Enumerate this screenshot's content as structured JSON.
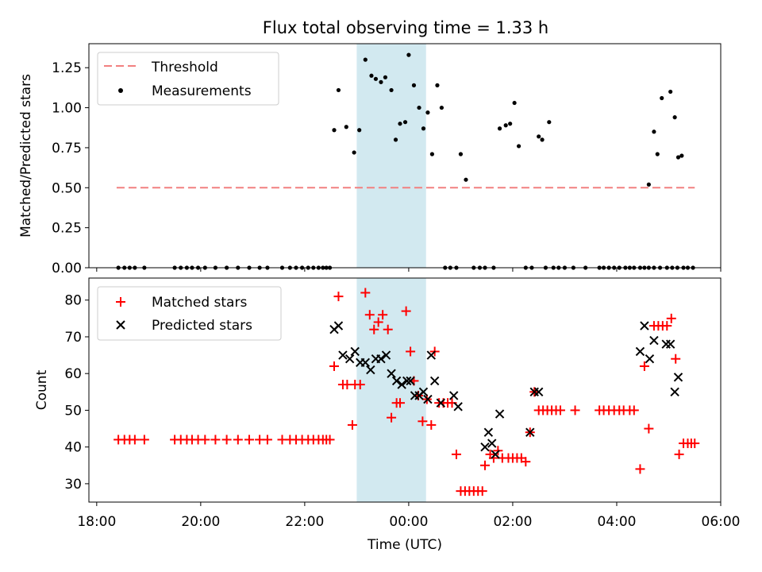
{
  "chart_data": [
    {
      "type": "scatter",
      "title": "Flux total observing time = 1.33 h",
      "xlabel": "",
      "ylabel": "Matched/Predicted stars",
      "xlim": [
        "18:00",
        "06:00"
      ],
      "x_hours_range": [
        -0.15,
        12.0
      ],
      "ylim": [
        0,
        1.4
      ],
      "yticks": [
        0.0,
        0.25,
        0.5,
        0.75,
        1.0,
        1.25
      ],
      "ytick_labels": [
        "0.00",
        "0.25",
        "0.50",
        "0.75",
        "1.00",
        "1.25"
      ],
      "legend_placement": "top-left",
      "highlight_span": {
        "start": "23:00",
        "end": "00:20",
        "color": "#d2e9f0"
      },
      "threshold": {
        "name": "Threshold",
        "value": 0.5,
        "x_start": "18:23",
        "x_end": "05:30",
        "color": "#f28080",
        "style": "dashed"
      },
      "series": [
        {
          "name": "Measurements",
          "color": "#000000",
          "marker": "dot",
          "points": [
            [
              "18:25",
              0
            ],
            [
              "18:32",
              0
            ],
            [
              "18:38",
              0
            ],
            [
              "18:44",
              0
            ],
            [
              "18:55",
              0
            ],
            [
              "19:30",
              0
            ],
            [
              "19:37",
              0
            ],
            [
              "19:44",
              0
            ],
            [
              "19:50",
              0
            ],
            [
              "19:57",
              0
            ],
            [
              "20:05",
              0
            ],
            [
              "20:17",
              0
            ],
            [
              "20:30",
              0
            ],
            [
              "20:43",
              0
            ],
            [
              "20:56",
              0
            ],
            [
              "21:08",
              0
            ],
            [
              "21:17",
              0
            ],
            [
              "21:34",
              0
            ],
            [
              "21:43",
              0
            ],
            [
              "21:50",
              0
            ],
            [
              "21:57",
              0
            ],
            [
              "22:04",
              0
            ],
            [
              "22:10",
              0
            ],
            [
              "22:16",
              0
            ],
            [
              "22:21",
              0
            ],
            [
              "22:25",
              0
            ],
            [
              "22:29",
              0
            ],
            [
              "22:34",
              0.86
            ],
            [
              "22:39",
              1.11
            ],
            [
              "22:48",
              0.88
            ],
            [
              "22:57",
              0.72
            ],
            [
              "23:03",
              0.86
            ],
            [
              "23:10",
              1.3
            ],
            [
              "23:17",
              1.2
            ],
            [
              "23:22",
              1.18
            ],
            [
              "23:28",
              1.16
            ],
            [
              "23:33",
              1.19
            ],
            [
              "23:40",
              1.11
            ],
            [
              "23:45",
              0.8
            ],
            [
              "23:50",
              0.9
            ],
            [
              "23:56",
              0.91
            ],
            [
              "00:00",
              1.33
            ],
            [
              "00:06",
              1.14
            ],
            [
              "00:12",
              1.0
            ],
            [
              "00:17",
              0.87
            ],
            [
              "00:22",
              0.97
            ],
            [
              "00:27",
              0.71
            ],
            [
              "00:33",
              1.14
            ],
            [
              "00:38",
              1.0
            ],
            [
              "00:42",
              0
            ],
            [
              "00:48",
              0
            ],
            [
              "00:55",
              0
            ],
            [
              "01:00",
              0.71
            ],
            [
              "01:06",
              0.55
            ],
            [
              "01:15",
              0
            ],
            [
              "01:22",
              0
            ],
            [
              "01:28",
              0
            ],
            [
              "01:38",
              0
            ],
            [
              "01:45",
              0.87
            ],
            [
              "01:52",
              0.89
            ],
            [
              "01:57",
              0.9
            ],
            [
              "02:02",
              1.03
            ],
            [
              "02:07",
              0.76
            ],
            [
              "02:15",
              0
            ],
            [
              "02:22",
              0
            ],
            [
              "02:30",
              0.82
            ],
            [
              "02:34",
              0.8
            ],
            [
              "02:38",
              0
            ],
            [
              "02:42",
              0.91
            ],
            [
              "02:47",
              0
            ],
            [
              "02:53",
              0
            ],
            [
              "03:00",
              0
            ],
            [
              "03:10",
              0
            ],
            [
              "03:24",
              0
            ],
            [
              "03:40",
              0
            ],
            [
              "03:45",
              0
            ],
            [
              "03:51",
              0
            ],
            [
              "03:57",
              0
            ],
            [
              "04:03",
              0
            ],
            [
              "04:10",
              0
            ],
            [
              "04:15",
              0
            ],
            [
              "04:20",
              0
            ],
            [
              "04:27",
              0
            ],
            [
              "04:32",
              0
            ],
            [
              "04:37",
              0
            ],
            [
              "04:43",
              0
            ],
            [
              "04:50",
              0
            ],
            [
              "04:58",
              0
            ],
            [
              "05:04",
              0
            ],
            [
              "05:10",
              0
            ],
            [
              "05:17",
              0
            ],
            [
              "05:22",
              0
            ],
            [
              "05:28",
              0
            ],
            [
              "04:37",
              0.52
            ],
            [
              "04:43",
              0.85
            ],
            [
              "04:47",
              0.71
            ],
            [
              "04:52",
              1.06
            ],
            [
              "05:02",
              1.1
            ],
            [
              "05:07",
              0.94
            ],
            [
              "05:11",
              0.69
            ],
            [
              "05:15",
              0.7
            ]
          ]
        }
      ]
    },
    {
      "type": "scatter",
      "title": "",
      "xlabel": "Time (UTC)",
      "ylabel": "Count",
      "xlim": [
        "18:00",
        "06:00"
      ],
      "x_hours_range": [
        -0.15,
        12.0
      ],
      "xticks": [
        "18:00",
        "20:00",
        "22:00",
        "00:00",
        "02:00",
        "04:00",
        "06:00"
      ],
      "ylim": [
        25,
        86
      ],
      "yticks": [
        30,
        40,
        50,
        60,
        70,
        80
      ],
      "legend_placement": "top-left",
      "highlight_span": {
        "start": "23:00",
        "end": "00:20",
        "color": "#d2e9f0"
      },
      "series": [
        {
          "name": "Matched stars",
          "color": "#ff0000",
          "marker": "plus",
          "points": [
            [
              "18:25",
              42
            ],
            [
              "18:32",
              42
            ],
            [
              "18:38",
              42
            ],
            [
              "18:44",
              42
            ],
            [
              "18:55",
              42
            ],
            [
              "19:30",
              42
            ],
            [
              "19:37",
              42
            ],
            [
              "19:44",
              42
            ],
            [
              "19:50",
              42
            ],
            [
              "19:57",
              42
            ],
            [
              "20:05",
              42
            ],
            [
              "20:17",
              42
            ],
            [
              "20:30",
              42
            ],
            [
              "20:43",
              42
            ],
            [
              "20:56",
              42
            ],
            [
              "21:08",
              42
            ],
            [
              "21:17",
              42
            ],
            [
              "21:34",
              42
            ],
            [
              "21:43",
              42
            ],
            [
              "21:50",
              42
            ],
            [
              "21:57",
              42
            ],
            [
              "22:04",
              42
            ],
            [
              "22:10",
              42
            ],
            [
              "22:16",
              42
            ],
            [
              "22:21",
              42
            ],
            [
              "22:25",
              42
            ],
            [
              "22:29",
              42
            ],
            [
              "22:34",
              62
            ],
            [
              "22:39",
              81
            ],
            [
              "22:44",
              57
            ],
            [
              "22:49",
              57
            ],
            [
              "22:55",
              46
            ],
            [
              "22:58",
              57
            ],
            [
              "23:04",
              57
            ],
            [
              "23:10",
              82
            ],
            [
              "23:15",
              76
            ],
            [
              "23:20",
              72
            ],
            [
              "23:25",
              74
            ],
            [
              "23:30",
              76
            ],
            [
              "23:36",
              72
            ],
            [
              "23:40",
              48
            ],
            [
              "23:46",
              52
            ],
            [
              "23:50",
              52
            ],
            [
              "23:57",
              77
            ],
            [
              "00:02",
              66
            ],
            [
              "00:06",
              58
            ],
            [
              "00:11",
              54
            ],
            [
              "00:16",
              47
            ],
            [
              "00:21",
              53
            ],
            [
              "00:26",
              46
            ],
            [
              "00:30",
              66
            ],
            [
              "00:35",
              52
            ],
            [
              "00:40",
              52
            ],
            [
              "00:45",
              52
            ],
            [
              "00:50",
              52
            ],
            [
              "00:55",
              38
            ],
            [
              "01:00",
              28
            ],
            [
              "01:05",
              28
            ],
            [
              "01:10",
              28
            ],
            [
              "01:15",
              28
            ],
            [
              "01:20",
              28
            ],
            [
              "01:25",
              28
            ],
            [
              "01:28",
              35
            ],
            [
              "01:34",
              38
            ],
            [
              "01:38",
              37
            ],
            [
              "01:43",
              39
            ],
            [
              "01:48",
              37
            ],
            [
              "01:55",
              37
            ],
            [
              "02:00",
              37
            ],
            [
              "02:05",
              37
            ],
            [
              "02:10",
              37
            ],
            [
              "02:15",
              36
            ],
            [
              "02:20",
              44
            ],
            [
              "02:25",
              55
            ],
            [
              "02:30",
              50
            ],
            [
              "02:35",
              50
            ],
            [
              "02:40",
              50
            ],
            [
              "02:45",
              50
            ],
            [
              "02:50",
              50
            ],
            [
              "02:55",
              50
            ],
            [
              "03:12",
              50
            ],
            [
              "03:40",
              50
            ],
            [
              "03:45",
              50
            ],
            [
              "03:51",
              50
            ],
            [
              "03:57",
              50
            ],
            [
              "04:03",
              50
            ],
            [
              "04:08",
              50
            ],
            [
              "04:15",
              50
            ],
            [
              "04:20",
              50
            ],
            [
              "04:27",
              34
            ],
            [
              "04:32",
              62
            ],
            [
              "04:37",
              45
            ],
            [
              "04:43",
              73
            ],
            [
              "04:48",
              73
            ],
            [
              "04:53",
              73
            ],
            [
              "04:58",
              73
            ],
            [
              "05:03",
              75
            ],
            [
              "05:08",
              64
            ],
            [
              "05:12",
              38
            ],
            [
              "05:17",
              41
            ],
            [
              "05:22",
              41
            ],
            [
              "05:26",
              41
            ],
            [
              "05:30",
              41
            ]
          ]
        },
        {
          "name": "Predicted stars",
          "color": "#000000",
          "marker": "x",
          "points": [
            [
              "22:34",
              72
            ],
            [
              "22:39",
              73
            ],
            [
              "22:44",
              65
            ],
            [
              "22:52",
              64
            ],
            [
              "22:58",
              66
            ],
            [
              "23:04",
              63
            ],
            [
              "23:10",
              63
            ],
            [
              "23:16",
              61
            ],
            [
              "23:22",
              64
            ],
            [
              "23:28",
              64
            ],
            [
              "23:34",
              65
            ],
            [
              "23:40",
              60
            ],
            [
              "23:46",
              58
            ],
            [
              "23:52",
              57
            ],
            [
              "23:58",
              58
            ],
            [
              "00:02",
              58
            ],
            [
              "00:07",
              54
            ],
            [
              "00:12",
              54
            ],
            [
              "00:17",
              55
            ],
            [
              "00:22",
              53
            ],
            [
              "00:26",
              65
            ],
            [
              "00:30",
              58
            ],
            [
              "00:37",
              52
            ],
            [
              "00:52",
              54
            ],
            [
              "00:57",
              51
            ],
            [
              "01:28",
              40
            ],
            [
              "01:32",
              44
            ],
            [
              "01:36",
              41
            ],
            [
              "01:40",
              38
            ],
            [
              "01:45",
              49
            ],
            [
              "02:20",
              44
            ],
            [
              "02:25",
              55
            ],
            [
              "02:30",
              55
            ],
            [
              "04:27",
              66
            ],
            [
              "04:32",
              73
            ],
            [
              "04:38",
              64
            ],
            [
              "04:43",
              69
            ],
            [
              "04:57",
              68
            ],
            [
              "05:02",
              68
            ],
            [
              "05:07",
              55
            ],
            [
              "05:11",
              59
            ]
          ]
        }
      ]
    }
  ]
}
